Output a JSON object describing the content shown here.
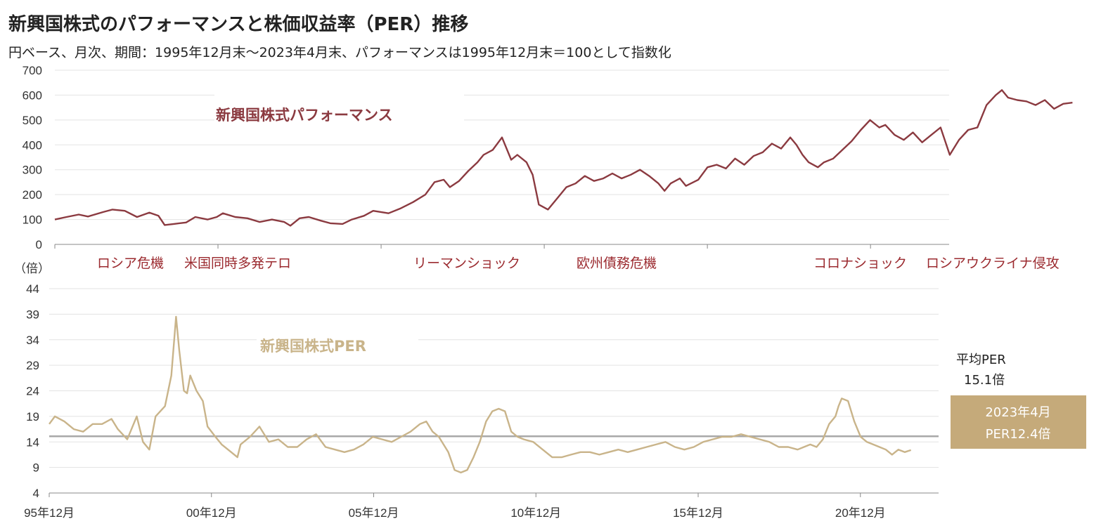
{
  "title": "新興国株式のパフォーマンスと株価収益率（PER）推移",
  "subtitle": "円ベース、月次、期間：1995年12月末～2023年4月末、パフォーマンスは1995年12月末＝100として指数化",
  "colors": {
    "performance": "#8b3a40",
    "per": "#c9b48a",
    "average_line": "#a8a8a8",
    "grid": "#e3e3e3",
    "box": "#c5aa7a",
    "event_text": "#9b2a2f"
  },
  "chart_data": [
    {
      "type": "line",
      "x_unit": "year (decimal, month-end)",
      "ylim": [
        0,
        700
      ],
      "yticks": [
        0,
        100,
        200,
        300,
        400,
        500,
        600,
        700
      ],
      "grid": true,
      "series": [
        {
          "name": "新興国株式パフォーマンス",
          "points": [
            [
              1995.92,
              100
            ],
            [
              1996.3,
              110
            ],
            [
              1996.7,
              120
            ],
            [
              1997.0,
              112
            ],
            [
              1997.5,
              130
            ],
            [
              1997.8,
              140
            ],
            [
              1998.2,
              135
            ],
            [
              1998.6,
              110
            ],
            [
              1999.0,
              128
            ],
            [
              1999.3,
              115
            ],
            [
              1999.5,
              78
            ],
            [
              1999.8,
              82
            ],
            [
              2000.2,
              88
            ],
            [
              2000.5,
              110
            ],
            [
              2000.9,
              100
            ],
            [
              2001.2,
              110
            ],
            [
              2001.4,
              125
            ],
            [
              2001.8,
              110
            ],
            [
              2002.2,
              105
            ],
            [
              2002.6,
              90
            ],
            [
              2003.0,
              100
            ],
            [
              2003.4,
              90
            ],
            [
              2003.6,
              75
            ],
            [
              2003.9,
              105
            ],
            [
              2004.2,
              110
            ],
            [
              2004.6,
              95
            ],
            [
              2004.9,
              85
            ],
            [
              2005.3,
              82
            ],
            [
              2005.6,
              100
            ],
            [
              2006.0,
              115
            ],
            [
              2006.3,
              135
            ],
            [
              2006.8,
              125
            ],
            [
              2007.2,
              145
            ],
            [
              2007.6,
              170
            ],
            [
              2008.0,
              200
            ],
            [
              2008.3,
              250
            ],
            [
              2008.6,
              260
            ],
            [
              2008.8,
              230
            ],
            [
              2009.1,
              255
            ],
            [
              2009.4,
              295
            ],
            [
              2009.7,
              330
            ],
            [
              2009.9,
              360
            ],
            [
              2010.2,
              380
            ],
            [
              2010.5,
              430
            ],
            [
              2010.8,
              340
            ],
            [
              2011.0,
              360
            ],
            [
              2011.3,
              330
            ],
            [
              2011.5,
              280
            ],
            [
              2011.7,
              160
            ],
            [
              2012.0,
              140
            ],
            [
              2012.3,
              185
            ],
            [
              2012.6,
              230
            ],
            [
              2012.9,
              245
            ],
            [
              2013.2,
              275
            ],
            [
              2013.5,
              255
            ],
            [
              2013.8,
              265
            ],
            [
              2014.1,
              285
            ],
            [
              2014.4,
              265
            ],
            [
              2014.7,
              280
            ],
            [
              2015.0,
              300
            ],
            [
              2015.3,
              275
            ],
            [
              2015.6,
              245
            ],
            [
              2015.8,
              215
            ],
            [
              2016.0,
              245
            ],
            [
              2016.3,
              265
            ],
            [
              2016.5,
              235
            ],
            [
              2016.9,
              260
            ],
            [
              2017.2,
              310
            ],
            [
              2017.5,
              320
            ],
            [
              2017.8,
              305
            ],
            [
              2018.1,
              345
            ],
            [
              2018.4,
              320
            ],
            [
              2018.7,
              355
            ],
            [
              2019.0,
              370
            ],
            [
              2019.3,
              405
            ],
            [
              2019.6,
              385
            ],
            [
              2019.9,
              430
            ],
            [
              2020.1,
              400
            ],
            [
              2020.3,
              360
            ],
            [
              2020.5,
              330
            ],
            [
              2020.8,
              310
            ],
            [
              2021.0,
              330
            ],
            [
              2021.3,
              345
            ],
            [
              2021.6,
              380
            ],
            [
              2021.9,
              415
            ],
            [
              2022.2,
              460
            ],
            [
              2022.5,
              500
            ],
            [
              2022.8,
              470
            ],
            [
              2023.0,
              480
            ],
            [
              2023.3,
              440
            ],
            [
              2023.6,
              420
            ],
            [
              2023.9,
              450
            ],
            [
              2024.2,
              410
            ],
            [
              2024.5,
              440
            ],
            [
              2024.8,
              470
            ],
            [
              2025.1,
              360
            ],
            [
              2025.4,
              420
            ],
            [
              2025.7,
              460
            ],
            [
              2026.0,
              470
            ],
            [
              2026.3,
              560
            ],
            [
              2026.6,
              600
            ],
            [
              2026.8,
              620
            ],
            [
              2027.0,
              590
            ],
            [
              2027.3,
              580
            ],
            [
              2027.6,
              575
            ],
            [
              2027.9,
              560
            ],
            [
              2028.2,
              580
            ],
            [
              2028.5,
              545
            ],
            [
              2028.8,
              565
            ],
            [
              2029.1,
              570
            ]
          ]
        }
      ]
    },
    {
      "type": "line",
      "x_unit": "year (decimal, month-end)",
      "ylabel": "（倍）",
      "ylim": [
        4,
        44
      ],
      "yticks": [
        4,
        9,
        14,
        19,
        24,
        29,
        34,
        39,
        44
      ],
      "xticks": [
        {
          "x": 1995.92,
          "label": "95年12月"
        },
        {
          "x": 2000.92,
          "label": "00年12月"
        },
        {
          "x": 2005.92,
          "label": "05年12月"
        },
        {
          "x": 2010.92,
          "label": "10年12月"
        },
        {
          "x": 2015.92,
          "label": "15年12月"
        },
        {
          "x": 2020.92,
          "label": "20年12月"
        }
      ],
      "grid": true,
      "average_line": 15.1,
      "series": [
        {
          "name": "新興国株式PER",
          "points": [
            [
              1995.92,
              17.5
            ],
            [
              1996.1,
              19.0
            ],
            [
              1996.4,
              18.0
            ],
            [
              1996.7,
              16.5
            ],
            [
              1997.0,
              16.0
            ],
            [
              1997.3,
              17.5
            ],
            [
              1997.6,
              17.5
            ],
            [
              1997.9,
              18.5
            ],
            [
              1998.1,
              16.5
            ],
            [
              1998.4,
              14.5
            ],
            [
              1998.7,
              19.0
            ],
            [
              1998.9,
              14.0
            ],
            [
              1999.1,
              12.5
            ],
            [
              1999.3,
              19.0
            ],
            [
              1999.6,
              21.0
            ],
            [
              1999.8,
              27.0
            ],
            [
              1999.95,
              38.5
            ],
            [
              2000.05,
              32.0
            ],
            [
              2000.2,
              24.0
            ],
            [
              2000.3,
              23.5
            ],
            [
              2000.4,
              27.0
            ],
            [
              2000.6,
              24.0
            ],
            [
              2000.8,
              22.0
            ],
            [
              2000.95,
              17.0
            ],
            [
              2001.2,
              15.0
            ],
            [
              2001.4,
              13.5
            ],
            [
              2001.7,
              12.0
            ],
            [
              2001.9,
              11.0
            ],
            [
              2002.0,
              13.5
            ],
            [
              2002.3,
              15.0
            ],
            [
              2002.6,
              17.0
            ],
            [
              2002.9,
              14.0
            ],
            [
              2003.2,
              14.5
            ],
            [
              2003.5,
              13.0
            ],
            [
              2003.8,
              13.0
            ],
            [
              2004.1,
              14.5
            ],
            [
              2004.4,
              15.5
            ],
            [
              2004.7,
              13.0
            ],
            [
              2005.0,
              12.5
            ],
            [
              2005.3,
              12.0
            ],
            [
              2005.6,
              12.5
            ],
            [
              2005.9,
              13.5
            ],
            [
              2006.2,
              15.0
            ],
            [
              2006.5,
              14.5
            ],
            [
              2006.8,
              14.0
            ],
            [
              2007.1,
              15.0
            ],
            [
              2007.4,
              16.0
            ],
            [
              2007.7,
              17.5
            ],
            [
              2007.9,
              18.0
            ],
            [
              2008.1,
              16.0
            ],
            [
              2008.3,
              15.0
            ],
            [
              2008.6,
              12.0
            ],
            [
              2008.8,
              8.5
            ],
            [
              2009.0,
              8.0
            ],
            [
              2009.2,
              8.5
            ],
            [
              2009.4,
              11.0
            ],
            [
              2009.6,
              14.0
            ],
            [
              2009.8,
              18.0
            ],
            [
              2010.0,
              20.0
            ],
            [
              2010.2,
              20.5
            ],
            [
              2010.4,
              20.0
            ],
            [
              2010.6,
              16.0
            ],
            [
              2010.8,
              15.0
            ],
            [
              2011.0,
              14.5
            ],
            [
              2011.3,
              14.0
            ],
            [
              2011.6,
              12.5
            ],
            [
              2011.9,
              11.0
            ],
            [
              2012.2,
              11.0
            ],
            [
              2012.5,
              11.5
            ],
            [
              2012.8,
              12.0
            ],
            [
              2013.1,
              12.0
            ],
            [
              2013.4,
              11.5
            ],
            [
              2013.7,
              12.0
            ],
            [
              2014.0,
              12.5
            ],
            [
              2014.3,
              12.0
            ],
            [
              2014.6,
              12.5
            ],
            [
              2014.9,
              13.0
            ],
            [
              2015.2,
              13.5
            ],
            [
              2015.5,
              14.0
            ],
            [
              2015.8,
              13.0
            ],
            [
              2016.1,
              12.5
            ],
            [
              2016.4,
              13.0
            ],
            [
              2016.7,
              14.0
            ],
            [
              2017.0,
              14.5
            ],
            [
              2017.3,
              15.0
            ],
            [
              2017.6,
              15.0
            ],
            [
              2017.9,
              15.5
            ],
            [
              2018.2,
              15.0
            ],
            [
              2018.5,
              14.5
            ],
            [
              2018.8,
              14.0
            ],
            [
              2019.1,
              13.0
            ],
            [
              2019.4,
              13.0
            ],
            [
              2019.7,
              12.5
            ],
            [
              2019.9,
              13.0
            ],
            [
              2020.1,
              13.5
            ],
            [
              2020.3,
              13.0
            ],
            [
              2020.5,
              14.5
            ],
            [
              2020.7,
              17.5
            ],
            [
              2020.9,
              19.0
            ],
            [
              2021.0,
              21.0
            ],
            [
              2021.1,
              22.5
            ],
            [
              2021.3,
              22.0
            ],
            [
              2021.5,
              18.0
            ],
            [
              2021.7,
              15.0
            ],
            [
              2021.9,
              14.0
            ],
            [
              2022.1,
              13.5
            ],
            [
              2022.3,
              13.0
            ],
            [
              2022.5,
              12.5
            ],
            [
              2022.7,
              11.5
            ],
            [
              2022.9,
              12.5
            ],
            [
              2023.1,
              12.0
            ],
            [
              2023.3,
              12.4
            ]
          ]
        }
      ]
    }
  ],
  "events": [
    "ロシア危機",
    "米国同時多発テロ",
    "リーマンショック",
    "欧州債務危機",
    "コロナショック",
    "ロシアウクライナ侵攻"
  ],
  "annotations": {
    "per_ylabel": "（倍）",
    "avg_label_1": "平均PER",
    "avg_label_2": "15.1倍",
    "latest_line_1": "2023年4月",
    "latest_line_2": "PER12.4倍",
    "perf_label": "新興国株式パフォーマンス",
    "per_label": "新興国株式PER"
  }
}
